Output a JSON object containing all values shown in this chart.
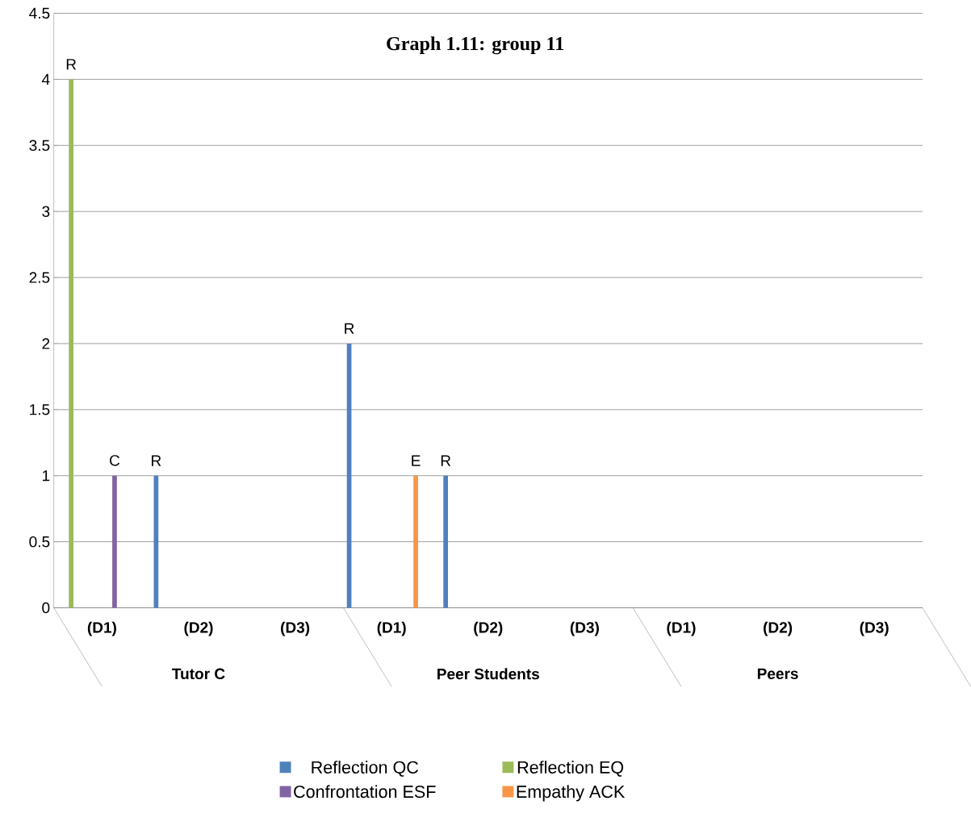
{
  "chart_data": {
    "type": "bar",
    "title": "Graph 1.11: group 11",
    "categories": [
      "(D1)",
      "(D2)",
      "(D3)",
      "(D1)",
      "(D2)",
      "(D3)",
      "(D1)",
      "(D2)",
      "(D3)"
    ],
    "series": [
      {
        "name": "Reflection QC",
        "color": "#4f81bd",
        "values": [
          0,
          1,
          0,
          2,
          1,
          0,
          0,
          0,
          0
        ],
        "value_labels": [
          null,
          "R",
          null,
          "R",
          "R",
          null,
          null,
          null,
          null
        ]
      },
      {
        "name": "Reflection EQ",
        "color": "#9bbb59",
        "values": [
          4,
          0,
          0,
          0,
          0,
          0,
          0,
          0,
          0
        ],
        "value_labels": [
          "R",
          null,
          null,
          null,
          null,
          null,
          null,
          null,
          null
        ]
      },
      {
        "name": "Confrontation ESF",
        "color": "#8064a2",
        "values": [
          1,
          0,
          0,
          0,
          0,
          0,
          0,
          0,
          0
        ],
        "value_labels": [
          "C",
          null,
          null,
          null,
          null,
          null,
          null,
          null,
          null
        ]
      },
      {
        "name": "Empathy ACK",
        "color": "#f79646",
        "values": [
          0,
          0,
          0,
          1,
          0,
          0,
          0,
          0,
          0
        ],
        "value_labels": [
          null,
          null,
          null,
          "E",
          null,
          null,
          null,
          null,
          null
        ]
      }
    ],
    "ylim": [
      0,
      4.5
    ],
    "yticks": [
      0,
      0.5,
      1,
      1.5,
      2,
      2.5,
      3,
      3.5,
      4,
      4.5
    ],
    "grid": "y",
    "legend": "bottom",
    "annotations": [
      "Tutor C",
      "Peer Students",
      "Peers"
    ]
  }
}
